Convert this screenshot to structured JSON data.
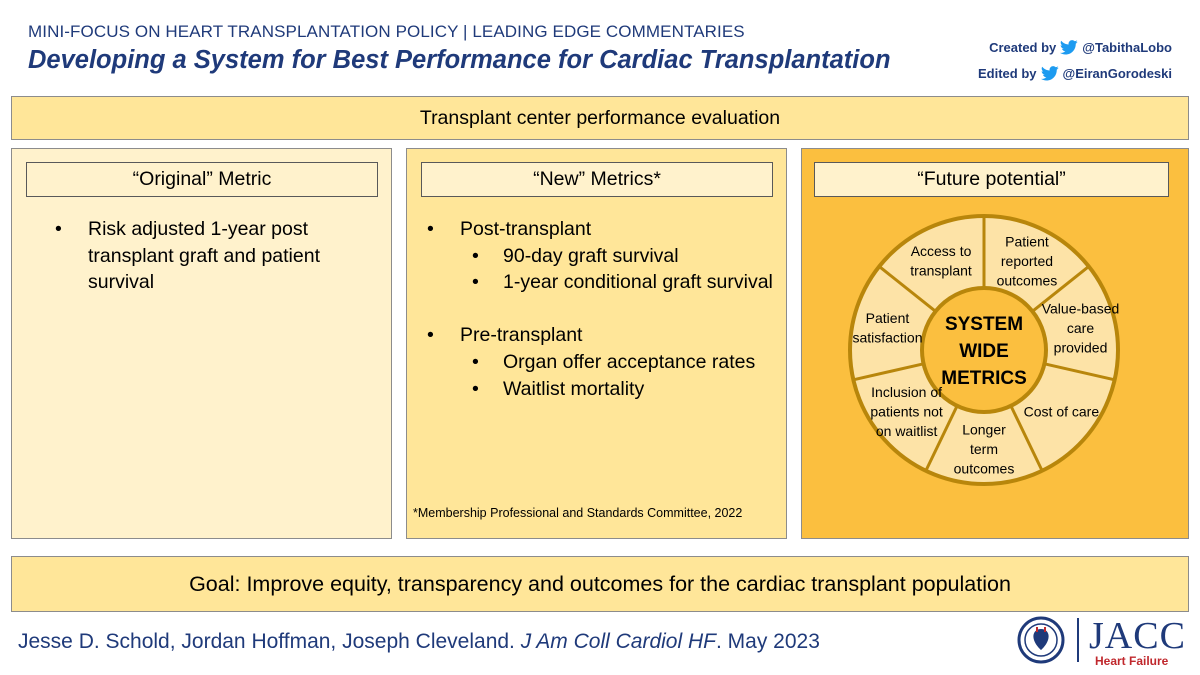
{
  "header": {
    "kicker": "MINI-FOCUS ON HEART TRANSPLANTATION POLICY | LEADING EDGE COMMENTARIES",
    "title": "Developing a System for Best Performance for Cardiac Transplantation",
    "created_label": "Created by",
    "created_handle": "@TabithaLobo",
    "edited_label": "Edited by",
    "edited_handle": "@EiranGorodeski",
    "icon": "twitter-bird-icon"
  },
  "top_band": "Transplant center performance evaluation",
  "columns": {
    "original": {
      "heading": "“Original” Metric",
      "bullets": [
        "Risk adjusted 1-year post transplant graft and patient survival"
      ]
    },
    "new": {
      "heading": "“New” Metrics*",
      "groups": [
        {
          "label": "Post-transplant",
          "items": [
            "90-day graft survival",
            "1-year conditional graft survival"
          ]
        },
        {
          "label": "Pre-transplant",
          "items": [
            "Organ offer acceptance rates",
            "Waitlist mortality"
          ]
        }
      ],
      "footnote": "*Membership Professional and Standards Committee, 2022"
    },
    "future": {
      "heading": "“Future potential”",
      "center_lines": [
        "SYSTEM",
        "WIDE",
        "METRICS"
      ],
      "segments": [
        {
          "lines": [
            "Patient",
            "reported",
            "outcomes"
          ]
        },
        {
          "lines": [
            "Value-based",
            "care",
            "provided"
          ]
        },
        {
          "lines": [
            "Cost of care"
          ]
        },
        {
          "lines": [
            "Longer",
            "term",
            "outcomes"
          ]
        },
        {
          "lines": [
            "Inclusion of",
            "patients not",
            "on waitlist"
          ]
        },
        {
          "lines": [
            "Patient",
            "satisfaction"
          ]
        },
        {
          "lines": [
            "Access to",
            "transplant"
          ]
        }
      ]
    }
  },
  "goal": "Goal: Improve equity, transparency and outcomes for the cardiac transplant population",
  "citation": {
    "authors": "Jesse D. Schold, Jordan Hoffman, Joseph Cleveland. ",
    "journal": "J Am Coll Cardiol HF",
    "date": ". May 2023"
  },
  "logo": {
    "name": "JACC",
    "subtitle": "Heart Failure"
  },
  "colors": {
    "navy": "#1f3a7a",
    "light_cream": "#fff2cc",
    "light_yellow": "#ffe699",
    "gold": "#fbbf3f",
    "wheel_ring": "#fde3a7",
    "wheel_stroke": "#b8860b",
    "brand_red": "#c0282d",
    "twitter_blue": "#1d9bf0"
  }
}
